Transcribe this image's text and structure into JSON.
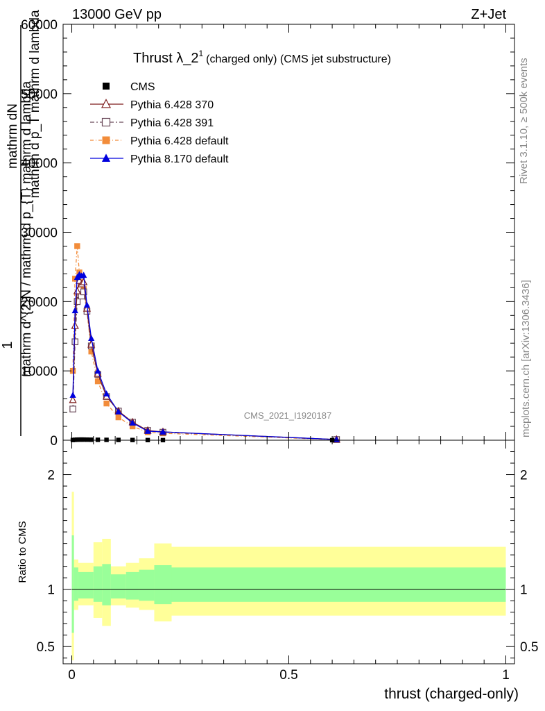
{
  "header": {
    "left": "13000 GeV pp",
    "right": "Z+Jet"
  },
  "side_labels": {
    "rivet": "Rivet 3.1.10, ≥ 500k events",
    "mcplots": "mcplots.cern.ch [arXiv:1306.3436]"
  },
  "watermark": "CMS_2021_I1920187",
  "chart_data": [
    {
      "type": "line",
      "title_main": "Thrust λ_2",
      "title_sup": "1",
      "title_rest": "(charged only) (CMS jet substructure)",
      "ylabel_prefix": "1",
      "ylabel_line1": "mathrm d^{2}N / mathrm d p_{T} mathrm d lambda",
      "ylabel_line2": "mathrm dN",
      "ylabel_frac": "mathrm d p_T mathrm d lambda",
      "xlim": [
        -0.02,
        1.02
      ],
      "ylim": [
        0,
        60000
      ],
      "yticks": [
        0,
        10000,
        20000,
        30000,
        40000,
        50000,
        60000
      ],
      "ytick_labels": [
        "0",
        "10000",
        "20000",
        "30000",
        "40000",
        "50000",
        "60000"
      ],
      "legend_position": "top-left",
      "series": [
        {
          "name": "CMS",
          "color": "#000000",
          "marker": "square-filled",
          "x": [
            0.0025,
            0.0075,
            0.0125,
            0.0175,
            0.0225,
            0.0275,
            0.035,
            0.045,
            0.06,
            0.08,
            0.1075,
            0.14,
            0.175,
            0.21,
            0.6
          ],
          "y": [
            30,
            60,
            80,
            90,
            90,
            90,
            80,
            70,
            60,
            50,
            40,
            30,
            20,
            15,
            5
          ]
        },
        {
          "name": "Pythia 6.428 370",
          "color": "#7f1f1f",
          "marker": "triangle-open",
          "dash": "",
          "x": [
            0.0025,
            0.0075,
            0.0125,
            0.0175,
            0.0225,
            0.0275,
            0.035,
            0.045,
            0.06,
            0.08,
            0.1075,
            0.14,
            0.175,
            0.21,
            0.61
          ],
          "y": [
            5800,
            16500,
            21500,
            23000,
            22500,
            22800,
            19000,
            13800,
            9600,
            6300,
            4200,
            2600,
            1400,
            1200,
            100
          ]
        },
        {
          "name": "Pythia 6.428 391",
          "color": "#6b4a5a",
          "marker": "square-open",
          "dash": "6,3,2,3",
          "x": [
            0.0025,
            0.0075,
            0.0125,
            0.0175,
            0.0225,
            0.0275,
            0.035,
            0.045,
            0.06,
            0.08,
            0.1075,
            0.14,
            0.175,
            0.21,
            0.61
          ],
          "y": [
            4500,
            14200,
            20000,
            21000,
            20800,
            21400,
            18600,
            13600,
            9500,
            6300,
            4200,
            2600,
            1400,
            1150,
            100
          ]
        },
        {
          "name": "Pythia 6.428 default",
          "color": "#f28c3a",
          "marker": "square-filled",
          "dash": "5,3,1,3",
          "x": [
            0.0025,
            0.0075,
            0.0125,
            0.0175,
            0.0225,
            0.0275,
            0.035,
            0.045,
            0.06,
            0.08,
            0.1075,
            0.14,
            0.175,
            0.21,
            0.61
          ],
          "y": [
            10000,
            23300,
            28000,
            24200,
            22800,
            21800,
            18700,
            12800,
            8500,
            5300,
            3300,
            2000,
            1150,
            1000,
            80
          ]
        },
        {
          "name": "Pythia 8.170 default",
          "color": "#0000dd",
          "marker": "triangle-filled",
          "dash": "",
          "x": [
            0.0025,
            0.0075,
            0.0125,
            0.0175,
            0.0225,
            0.0275,
            0.035,
            0.045,
            0.06,
            0.08,
            0.1075,
            0.14,
            0.175,
            0.21,
            0.61
          ],
          "y": [
            6500,
            18700,
            23500,
            23900,
            23700,
            23800,
            19500,
            14700,
            10000,
            6700,
            4100,
            2500,
            1300,
            1200,
            100
          ]
        }
      ]
    },
    {
      "type": "area",
      "ylabel": "Ratio to CMS",
      "xlabel": "thrust (charged-only)",
      "xlim": [
        -0.02,
        1.02
      ],
      "ylim": [
        0.35,
        2.3
      ],
      "yticks": [
        0.5,
        1,
        2
      ],
      "ytick_labels": [
        "0.5",
        "1",
        "2"
      ],
      "xticks": [
        0,
        0.5,
        1
      ],
      "xtick_labels": [
        "0",
        "0.5",
        "1"
      ],
      "band_colors": {
        "inner": "#99ff99",
        "outer": "#ffff99"
      },
      "bins": [
        {
          "lo": 0.0,
          "hi": 0.005,
          "inner": [
            0.62,
            1.47
          ],
          "outer": [
            0.38,
            1.85
          ]
        },
        {
          "lo": 0.005,
          "hi": 0.015,
          "inner": [
            0.9,
            1.19
          ],
          "outer": [
            0.82,
            1.26
          ]
        },
        {
          "lo": 0.015,
          "hi": 0.05,
          "inner": [
            0.92,
            1.15
          ],
          "outer": [
            0.86,
            1.23
          ]
        },
        {
          "lo": 0.05,
          "hi": 0.07,
          "inner": [
            0.89,
            1.2
          ],
          "outer": [
            0.75,
            1.41
          ]
        },
        {
          "lo": 0.07,
          "hi": 0.09,
          "inner": [
            0.86,
            1.22
          ],
          "outer": [
            0.68,
            1.44
          ]
        },
        {
          "lo": 0.09,
          "hi": 0.125,
          "inner": [
            0.92,
            1.13
          ],
          "outer": [
            0.86,
            1.2
          ]
        },
        {
          "lo": 0.125,
          "hi": 0.155,
          "inner": [
            0.91,
            1.15
          ],
          "outer": [
            0.84,
            1.23
          ]
        },
        {
          "lo": 0.155,
          "hi": 0.19,
          "inner": [
            0.9,
            1.17
          ],
          "outer": [
            0.82,
            1.27
          ]
        },
        {
          "lo": 0.19,
          "hi": 0.23,
          "inner": [
            0.87,
            1.21
          ],
          "outer": [
            0.72,
            1.4
          ]
        },
        {
          "lo": 0.23,
          "hi": 1.0,
          "inner": [
            0.89,
            1.19
          ],
          "outer": [
            0.77,
            1.37
          ]
        }
      ]
    }
  ]
}
